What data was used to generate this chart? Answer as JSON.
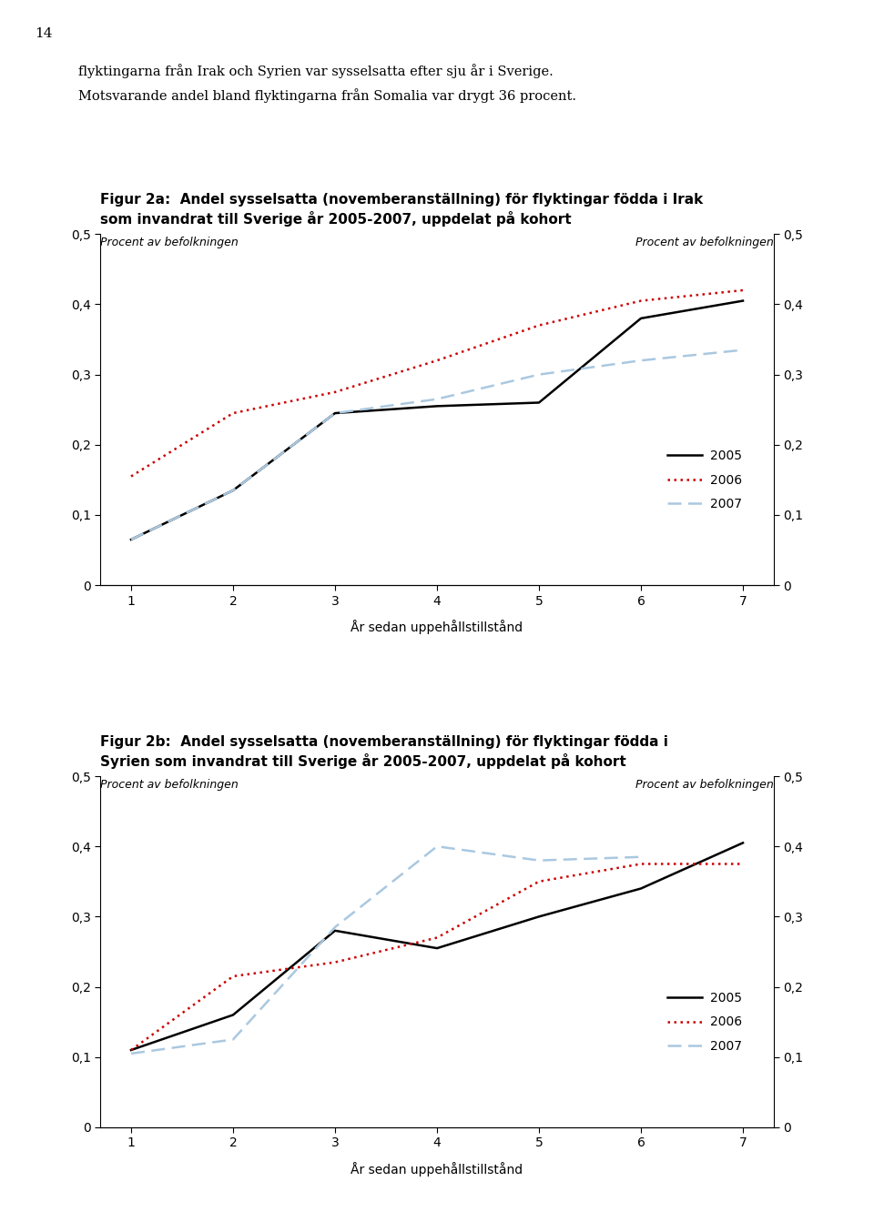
{
  "page_number": "14",
  "intro_text_line1": "flyktingarna från Irak och Syrien var sysselsatta efter sju år i Sverige.",
  "intro_text_line2": "Motsvarande andel bland flyktingarna från Somalia var drygt 36 procent.",
  "fig2a_title_line1": "Figur 2a:  Andel sysselsatta (novemberanställning) för flyktingar födda i Irak",
  "fig2a_title_line2": "som invandrat till Sverige år 2005-2007, uppdelat på kohort",
  "fig2b_title_line1": "Figur 2b:  Andel sysselsatta (novemberanställning) för flyktingar födda i",
  "fig2b_title_line2": "Syrien som invandrat till Sverige år 2005-2007, uppdelat på kohort",
  "ylabel_left": "Procent av befolkningen",
  "ylabel_right": "Procent av befolkningen",
  "xlabel": "År sedan uppehållstillstånd",
  "x": [
    1,
    2,
    3,
    4,
    5,
    6,
    7
  ],
  "fig2a_2005": [
    0.065,
    0.135,
    0.245,
    0.255,
    0.26,
    0.38,
    0.405
  ],
  "fig2a_2006": [
    0.155,
    0.245,
    0.275,
    0.32,
    0.37,
    0.405,
    0.42
  ],
  "fig2a_2007": [
    0.065,
    0.135,
    0.245,
    0.265,
    0.3,
    0.32,
    0.335
  ],
  "fig2b_2005": [
    0.11,
    0.16,
    0.28,
    0.255,
    0.3,
    0.34,
    0.405
  ],
  "fig2b_2006": [
    0.11,
    0.215,
    0.235,
    0.27,
    0.35,
    0.375,
    0.375
  ],
  "fig2b_2007": [
    0.105,
    0.125,
    0.285,
    0.4,
    0.38,
    0.385,
    null
  ],
  "color_2005": "#000000",
  "color_2006": "#cc0000",
  "color_2007": "#aac8e0",
  "ylim": [
    0,
    0.5
  ],
  "yticks": [
    0,
    0.1,
    0.2,
    0.3,
    0.4,
    0.5
  ],
  "xticks": [
    1,
    2,
    3,
    4,
    5,
    6,
    7
  ],
  "background_color": "#ffffff"
}
